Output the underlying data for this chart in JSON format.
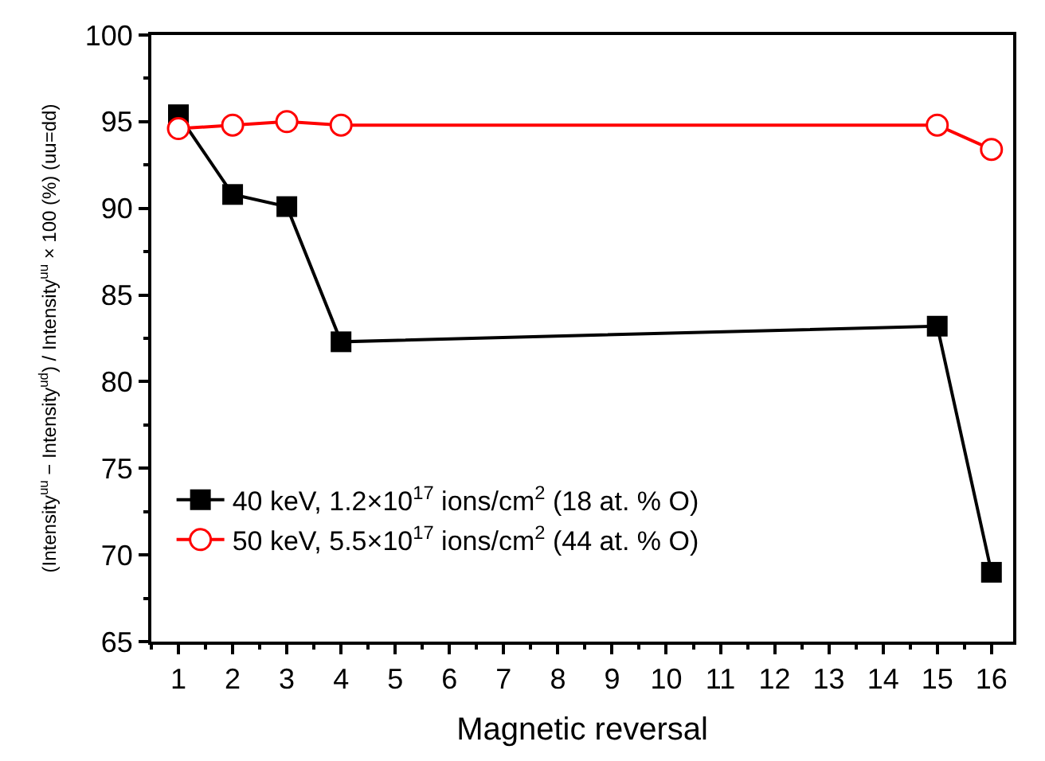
{
  "chart_data": {
    "type": "line",
    "xlabel": "Magnetic reversal",
    "ylabel": "(Intensity$^{uu}$ − Intensity$^{ud}$) / Intensity$^{uu}$ × 100 (%) (uu=dd)",
    "x": [
      1,
      2,
      3,
      4,
      15,
      16
    ],
    "series": [
      {
        "name": "40 keV, 1.2×10$^{17}$ ions/cm$^{2}$ (18 at. % O)",
        "color": "#000000",
        "marker": "square",
        "values": [
          95.4,
          90.8,
          90.1,
          82.3,
          83.2,
          69.0
        ]
      },
      {
        "name": "50 keV, 5.5×10$^{17}$ ions/cm$^{2}$ (44 at. % O)",
        "color": "#ff0000",
        "marker": "circle-open",
        "values": [
          94.6,
          94.8,
          95.0,
          94.8,
          94.8,
          93.4
        ]
      }
    ],
    "xlim": [
      0.5,
      16.4
    ],
    "xticks": [
      1,
      2,
      3,
      4,
      5,
      6,
      7,
      8,
      9,
      10,
      11,
      12,
      13,
      14,
      15,
      16
    ],
    "ylim": [
      65,
      100
    ],
    "yticks": [
      65,
      70,
      75,
      80,
      85,
      90,
      95,
      100
    ],
    "legend": "bottom left",
    "line_style": "solid"
  }
}
